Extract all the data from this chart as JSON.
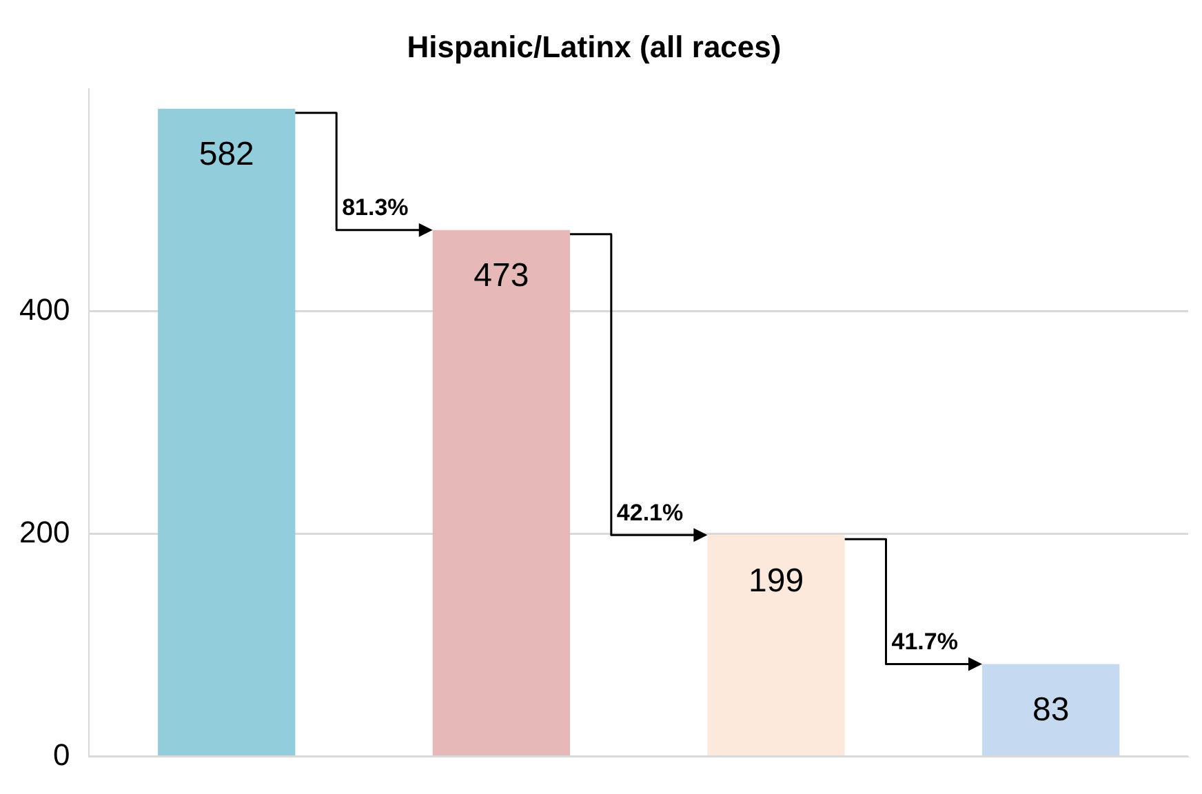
{
  "chart_data": {
    "type": "bar",
    "title": "Hispanic/Latinx (all races)",
    "categories": [
      null,
      null,
      null,
      null
    ],
    "values": [
      582,
      473,
      199,
      83
    ],
    "colors": [
      "#92cddc",
      "#e6b8b7",
      "#fce9db",
      "#c5d9f1"
    ],
    "ylim": [
      0,
      600
    ],
    "yticks": [
      0,
      200,
      400
    ],
    "grid": "y",
    "data_labels": true,
    "legend": false,
    "annotations": [
      "81.3%",
      "42.1%",
      "41.7%"
    ]
  }
}
